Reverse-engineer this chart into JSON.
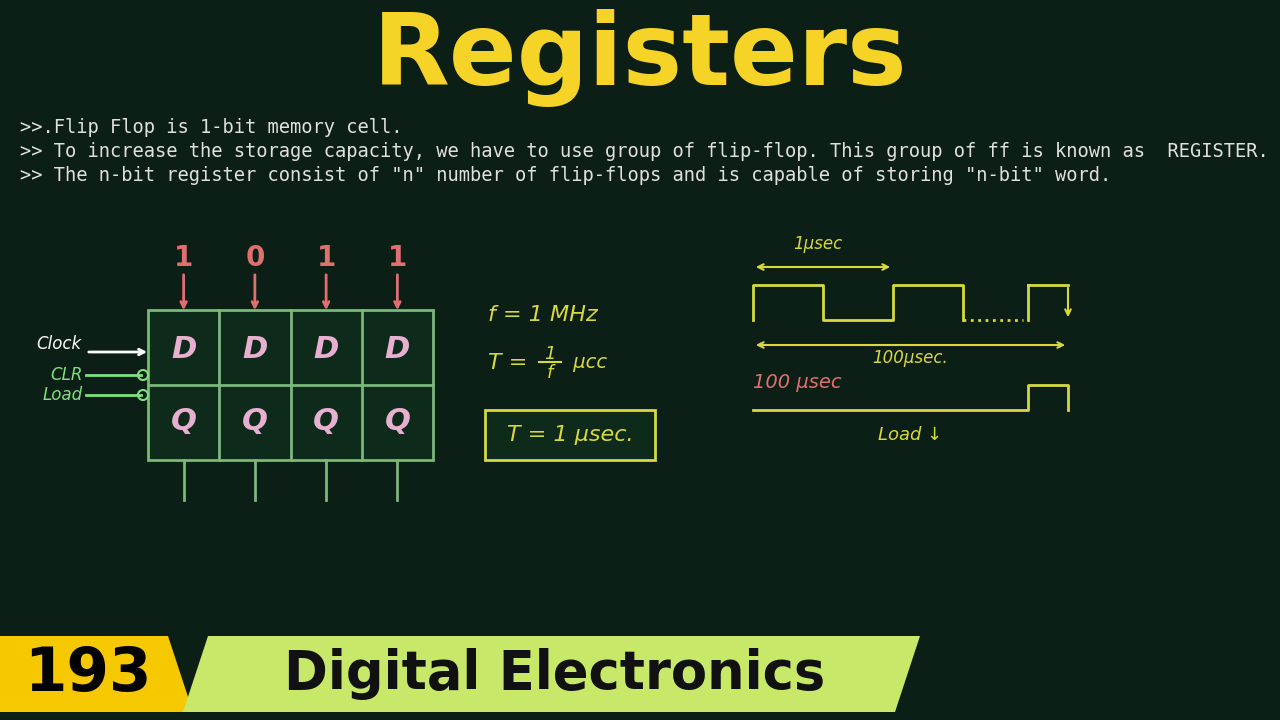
{
  "background_color": "#0b1f16",
  "title": "Registers",
  "title_color": "#f5d327",
  "title_fontsize": 72,
  "bullet_lines": [
    ">>.Flip Flop is 1-bit memory cell.",
    ">> To increase the storage capacity, we have to use group of flip-flop. This group of ff is known as  REGISTER.",
    ">> The n-bit register consist of \"n\" number of flip-flops and is capable of storing \"n-bit\" word."
  ],
  "bullet_color": "#e0e0e0",
  "bullet_fontsize": 13.5,
  "badge_number": "193",
  "badge_text": "Digital Electronics",
  "badge_yellow": "#f5c800",
  "badge_green": "#c8e86a",
  "badge_text_color": "#111111",
  "ff_border": "#7ab87a",
  "ff_fill": "#0d2a1a",
  "ff_label_color": "#e8b0d0",
  "input_color": "#e07070",
  "clk_color": "#ffffff",
  "clr_load_color": "#80e080",
  "wave_color": "#d8d840",
  "mid_color": "#d8d840",
  "load_wave_color": "#d8d840",
  "load_label_color": "#e07070"
}
